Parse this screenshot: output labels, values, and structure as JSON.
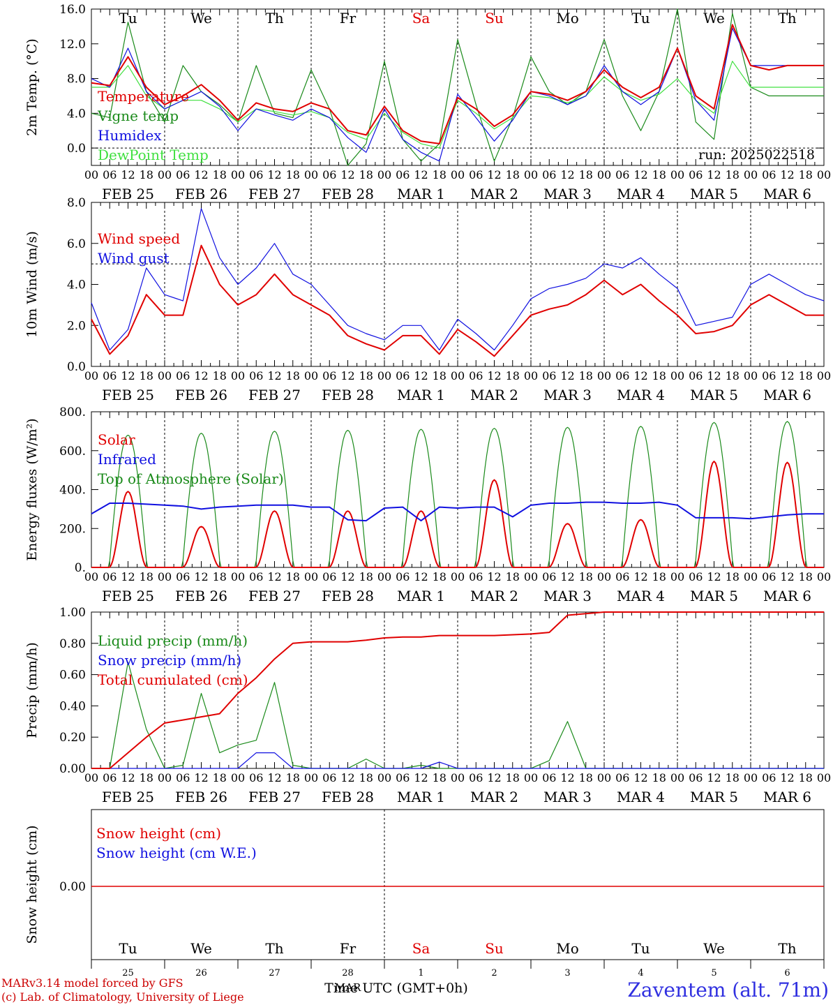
{
  "days": [
    "Tu",
    "We",
    "Th",
    "Fr",
    "Sa",
    "Su",
    "Mo",
    "Tu",
    "We",
    "Th"
  ],
  "day_colors": [
    "#000000",
    "#000000",
    "#000000",
    "#000000",
    "#e00000",
    "#e00000",
    "#000000",
    "#000000",
    "#000000",
    "#000000"
  ],
  "date_labels": [
    "FEB 25",
    "FEB 26",
    "FEB 27",
    "FEB 28",
    "MAR  1",
    "MAR  2",
    "MAR  3",
    "MAR  4",
    "MAR  5",
    "MAR  6"
  ],
  "hour_labels": [
    "00",
    "06",
    "12",
    "18"
  ],
  "hour_end": "00",
  "date_numbers": [
    "25",
    "26",
    "27",
    "28",
    "1",
    "2",
    "3",
    "4",
    "5",
    "6"
  ],
  "month_overlay": "MAR",
  "xlabel": "Time UTC (GMT+0h)",
  "location": "Zaventem (alt. 71m)",
  "credit": [
    "MARv3.14 model forced by GFS",
    "(c) Lab. of Climatology, University of Liege"
  ],
  "run_label": "run: 2025022518",
  "colors": {
    "red": "#e00000",
    "green": "#1a8a1a",
    "blue": "#1010e0",
    "lightgreen": "#40e040"
  },
  "chart_data": [
    {
      "type": "line",
      "ylabel": "2m Temp. (°C)",
      "ylim": [
        -2,
        16
      ],
      "yticks": [
        "16.0",
        "12.0",
        "8.0",
        "4.0",
        "0.0"
      ],
      "ytick_values": [
        16,
        12,
        8,
        4,
        0
      ],
      "ref_line": 0,
      "x": [
        0,
        6,
        12,
        18,
        24,
        30,
        36,
        42,
        48,
        54,
        60,
        66,
        72,
        78,
        84,
        90,
        96,
        102,
        108,
        114,
        120,
        126,
        132,
        138,
        144,
        150,
        156,
        162,
        168,
        174,
        180,
        186,
        192,
        198,
        204,
        210,
        216,
        222,
        228,
        234,
        240
      ],
      "series": [
        {
          "name": "Temperature",
          "color": "red",
          "values": [
            7.5,
            7.2,
            10.5,
            7.0,
            5.0,
            6.0,
            7.3,
            5.5,
            3.2,
            5.2,
            4.5,
            4.2,
            5.2,
            4.5,
            2.0,
            1.5,
            4.8,
            2.0,
            0.8,
            0.5,
            5.8,
            4.5,
            2.5,
            3.8,
            6.5,
            6.2,
            5.5,
            6.5,
            9.0,
            7.0,
            5.8,
            7.0,
            11.5,
            6.0,
            4.5,
            14.2,
            9.5,
            9.0,
            9.5,
            9.5,
            9.5
          ]
        },
        {
          "name": "Vigne temp",
          "color": "green",
          "values": [
            4.0,
            3.5,
            14.5,
            6.5,
            3.0,
            9.5,
            6.5,
            5.0,
            3.0,
            9.5,
            4.0,
            3.5,
            9.0,
            4.5,
            -2.0,
            0.5,
            10.0,
            1.0,
            -1.5,
            0.5,
            12.5,
            5.0,
            -1.5,
            3.5,
            10.5,
            6.5,
            5.0,
            6.5,
            12.5,
            6.0,
            2.0,
            6.5,
            16.0,
            3.0,
            1.0,
            15.5,
            7.0,
            6.0,
            6.0,
            6.0,
            6.0
          ]
        },
        {
          "name": "Humidex",
          "color": "blue",
          "values": [
            8.0,
            7.0,
            11.5,
            6.5,
            4.5,
            5.5,
            6.5,
            4.8,
            2.0,
            4.5,
            3.8,
            3.2,
            4.5,
            3.5,
            1.2,
            -0.5,
            4.5,
            1.0,
            -0.5,
            -1.5,
            6.2,
            3.5,
            0.8,
            3.2,
            6.5,
            6.0,
            5.0,
            6.0,
            9.5,
            6.5,
            5.0,
            6.5,
            11.5,
            5.5,
            3.2,
            13.8,
            9.5,
            9.5,
            9.5,
            9.5,
            9.5
          ]
        },
        {
          "name": "DewPoint Temp",
          "color": "lightgreen",
          "values": [
            7.0,
            7.0,
            9.5,
            6.0,
            4.5,
            5.5,
            5.5,
            4.5,
            3.0,
            4.5,
            4.2,
            3.8,
            4.2,
            3.5,
            1.8,
            1.0,
            4.0,
            1.8,
            0.5,
            0.0,
            5.5,
            4.0,
            2.2,
            3.5,
            6.0,
            5.8,
            5.2,
            6.0,
            8.2,
            6.5,
            5.5,
            6.2,
            8.0,
            5.5,
            4.0,
            10.0,
            7.0,
            7.0,
            7.0,
            7.0,
            7.0
          ]
        }
      ]
    },
    {
      "type": "line",
      "ylabel": "10m Wind (m/s)",
      "ylim": [
        0,
        8
      ],
      "yticks": [
        "8.0",
        "6.0",
        "4.0",
        "2.0",
        "0.0"
      ],
      "ytick_values": [
        8,
        6,
        4,
        2,
        0
      ],
      "ref_line": 5,
      "x": [
        0,
        6,
        12,
        18,
        24,
        30,
        36,
        42,
        48,
        54,
        60,
        66,
        72,
        78,
        84,
        90,
        96,
        102,
        108,
        114,
        120,
        126,
        132,
        138,
        144,
        150,
        156,
        162,
        168,
        174,
        180,
        186,
        192,
        198,
        204,
        210,
        216,
        222,
        228,
        234,
        240
      ],
      "series": [
        {
          "name": "Wind speed",
          "color": "red",
          "values": [
            2.3,
            0.6,
            1.5,
            3.5,
            2.5,
            2.5,
            5.9,
            4.0,
            3.0,
            3.5,
            4.5,
            3.5,
            3.0,
            2.5,
            1.5,
            1.1,
            0.8,
            1.5,
            1.5,
            0.6,
            1.8,
            1.2,
            0.5,
            1.5,
            2.5,
            2.8,
            3.0,
            3.5,
            4.2,
            3.5,
            4.0,
            3.2,
            2.5,
            1.6,
            1.7,
            2.0,
            3.0,
            3.5,
            3.0,
            2.5,
            2.5
          ]
        },
        {
          "name": "Wind gust",
          "color": "blue",
          "values": [
            3.1,
            0.8,
            1.8,
            4.8,
            3.5,
            3.2,
            7.7,
            5.3,
            4.0,
            4.8,
            6.0,
            4.5,
            4.0,
            3.0,
            2.0,
            1.6,
            1.3,
            2.0,
            2.0,
            0.8,
            2.3,
            1.6,
            0.8,
            2.0,
            3.3,
            3.8,
            4.0,
            4.3,
            5.0,
            4.8,
            5.3,
            4.5,
            3.8,
            2.0,
            2.2,
            2.4,
            4.0,
            4.5,
            4.0,
            3.5,
            3.2
          ]
        }
      ]
    },
    {
      "type": "line",
      "ylabel": "Energy fluxes (W/m²)",
      "ylim": [
        0,
        800
      ],
      "yticks": [
        "800.",
        "600.",
        "400.",
        "200.",
        "0."
      ],
      "ytick_values": [
        800,
        600,
        400,
        200,
        0
      ],
      "x_daily_peaks": [
        12,
        36,
        60,
        84,
        108,
        132,
        156,
        180,
        204,
        228
      ],
      "series": [
        {
          "name": "Solar",
          "color": "red",
          "peaks": [
            390,
            210,
            290,
            290,
            290,
            450,
            225,
            245,
            545,
            540
          ]
        },
        {
          "name": "Infrared",
          "color": "blue",
          "values": [
            275,
            330,
            330,
            325,
            320,
            315,
            300,
            310,
            315,
            320,
            320,
            320,
            310,
            310,
            245,
            240,
            305,
            310,
            240,
            310,
            305,
            310,
            310,
            260,
            320,
            330,
            330,
            335,
            335,
            330,
            330,
            335,
            320,
            255,
            255,
            255,
            250,
            260,
            270,
            275,
            275
          ]
        },
        {
          "name": "Top of Atmosphere (Solar)",
          "color": "green",
          "peaks": [
            680,
            690,
            700,
            705,
            710,
            715,
            720,
            725,
            745,
            750
          ]
        }
      ]
    },
    {
      "type": "line",
      "ylabel": "Precip (mm/h)",
      "ylim": [
        0,
        1.0
      ],
      "yticks": [
        "1.00",
        "0.80",
        "0.60",
        "0.40",
        "0.20",
        "0.00"
      ],
      "ytick_values": [
        1.0,
        0.8,
        0.6,
        0.4,
        0.2,
        0.0
      ],
      "x": [
        0,
        6,
        12,
        18,
        24,
        30,
        36,
        42,
        48,
        54,
        60,
        66,
        72,
        78,
        84,
        90,
        96,
        102,
        108,
        114,
        120,
        126,
        132,
        138,
        144,
        150,
        156,
        162,
        168,
        174,
        180,
        186,
        192,
        198,
        204,
        210,
        216,
        222,
        228,
        234,
        240
      ],
      "series": [
        {
          "name": "Liquid precip (mm/h)",
          "color": "green",
          "values": [
            0,
            0,
            0.68,
            0.25,
            0,
            0.02,
            0.48,
            0.1,
            0.15,
            0.18,
            0.55,
            0.02,
            0,
            0,
            0,
            0.06,
            0,
            0,
            0.02,
            0,
            0,
            0,
            0,
            0,
            0,
            0.05,
            0.3,
            0,
            0,
            0,
            0,
            0,
            0,
            0,
            0,
            0,
            0,
            0,
            0,
            0,
            0
          ]
        },
        {
          "name": "Snow precip (mm/h)",
          "color": "blue",
          "values": [
            0,
            0,
            0,
            0,
            0,
            0,
            0,
            0,
            0,
            0.1,
            0.1,
            0,
            0,
            0,
            0,
            0,
            0,
            0,
            0,
            0.04,
            0,
            0,
            0,
            0,
            0,
            0,
            0,
            0,
            0,
            0,
            0,
            0,
            0,
            0,
            0,
            0,
            0,
            0,
            0,
            0,
            0
          ]
        },
        {
          "name": "Total cumulated (cm)",
          "color": "red",
          "values": [
            0,
            0,
            0.1,
            0.2,
            0.29,
            0.31,
            0.33,
            0.35,
            0.48,
            0.58,
            0.7,
            0.8,
            0.81,
            0.81,
            0.81,
            0.82,
            0.835,
            0.84,
            0.84,
            0.85,
            0.85,
            0.85,
            0.85,
            0.855,
            0.86,
            0.87,
            0.98,
            0.99,
            1.0,
            1.0,
            1.0,
            1.0,
            1.0,
            1.0,
            1.0,
            1.0,
            1.0,
            1.0,
            1.0,
            1.0,
            1.0
          ]
        }
      ]
    },
    {
      "type": "line",
      "ylabel": "Snow height (cm)",
      "yticks": [
        "0.00"
      ],
      "ytick_values": [
        0
      ],
      "series": [
        {
          "name": "Snow height (cm)",
          "color": "red",
          "values": [
            0,
            0
          ]
        },
        {
          "name": "Snow height (cm W.E.)",
          "color": "blue",
          "values": [
            0,
            0
          ]
        }
      ]
    }
  ]
}
